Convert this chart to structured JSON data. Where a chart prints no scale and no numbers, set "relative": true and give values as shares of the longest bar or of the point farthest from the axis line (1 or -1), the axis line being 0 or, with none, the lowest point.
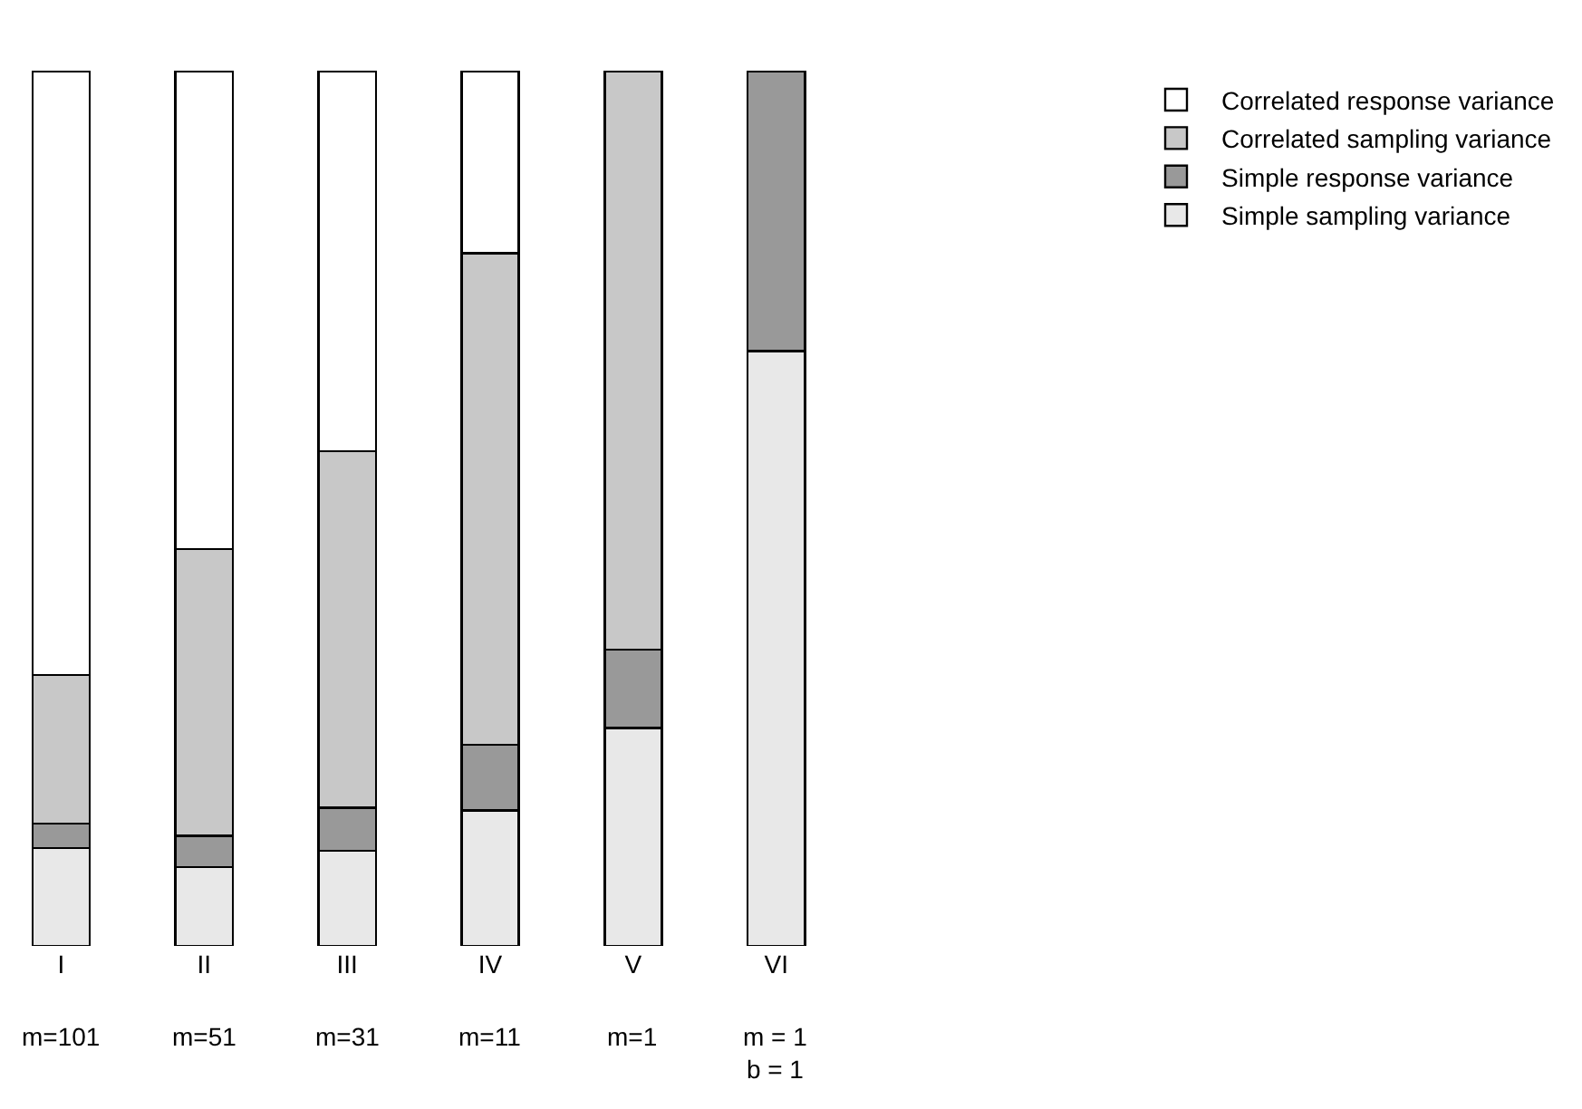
{
  "chart_data": {
    "type": "bar",
    "stacked": true,
    "relative": true,
    "legend": "right",
    "categories": [
      "I",
      "II",
      "III",
      "IV",
      "V",
      "VI"
    ],
    "annotations": [
      "m=101",
      "m=51",
      "m=31",
      "m=11",
      "m=1",
      "m = 1\nb = 1"
    ],
    "series": [
      {
        "name": "Simple sampling variance",
        "color": "#e8e8e8",
        "values": [
          0.112,
          0.09,
          0.109,
          0.155,
          0.249,
          0.68
        ]
      },
      {
        "name": "Simple response variance",
        "color": "#999999",
        "values": [
          0.028,
          0.036,
          0.049,
          0.075,
          0.09,
          0.32
        ]
      },
      {
        "name": "Correlated sampling variance",
        "color": "#c8c8c8",
        "values": [
          0.17,
          0.328,
          0.408,
          0.562,
          0.661,
          null
        ]
      },
      {
        "name": "Correlated response variance",
        "color": "#ffffff",
        "values": [
          0.69,
          0.546,
          0.434,
          0.208,
          null,
          null
        ]
      }
    ]
  }
}
